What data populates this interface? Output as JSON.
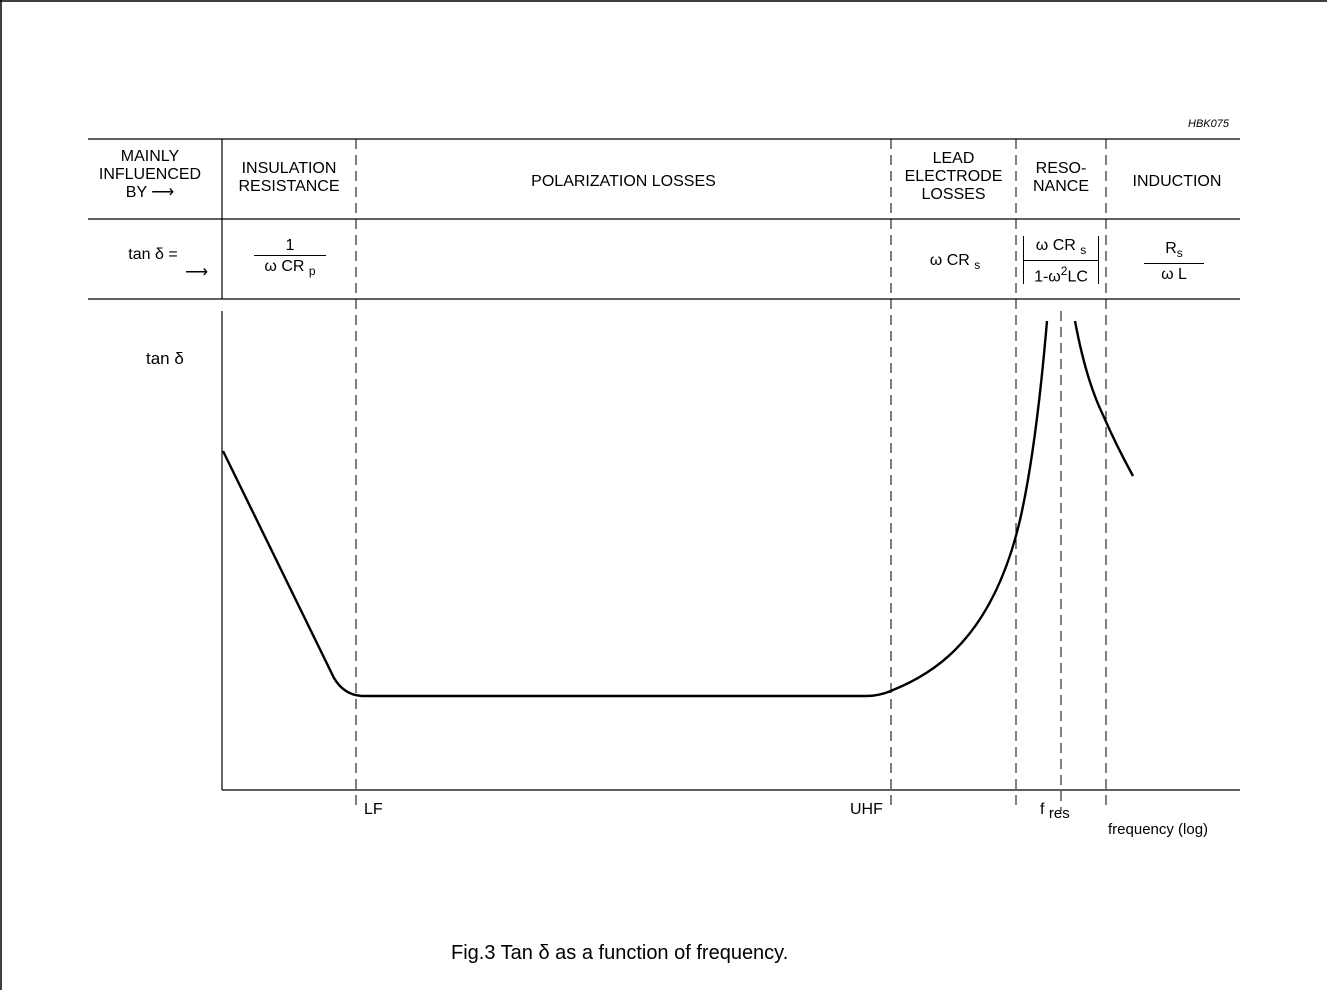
{
  "figure_code": "HBK075",
  "row_headers": {
    "influence": {
      "line1": "MAINLY",
      "line2": "INFLUENCED",
      "line3": "BY",
      "arrow": "⟶"
    },
    "formula": {
      "line1": "tan  δ =",
      "arrow": "⟶"
    }
  },
  "regions": [
    {
      "label_line1": "INSULATION",
      "label_line2": "RESISTANCE",
      "num": "1",
      "den_main": "ω CR",
      "den_sub": "p"
    },
    {
      "label_line1": "POLARIZATION LOSSES"
    },
    {
      "label_line1": "LEAD",
      "label_line2": "ELECTRODE",
      "label_line3": "LOSSES",
      "formula_main": "ω CR",
      "formula_sub": "s"
    },
    {
      "label_line1": "RESO-",
      "label_line2": "NANCE",
      "num_main": "ω CR",
      "num_sub": "s",
      "den_a": "1-ω",
      "den_sup": "2",
      "den_b": "LC"
    },
    {
      "label_line1": "INDUCTION",
      "num_main": "R",
      "num_sub": "s",
      "den": "ω L"
    }
  ],
  "axes": {
    "ylabel": "tan  δ",
    "xlabel": "frequency  (log)",
    "x_markers": {
      "lf": "LF",
      "uhf": "UHF",
      "fres_main": "f",
      "fres_sub": "res"
    }
  },
  "caption": "Fig.3  Tan δ as a function of frequency.",
  "colors": {
    "line": "#000000",
    "background": "#ffffff"
  }
}
